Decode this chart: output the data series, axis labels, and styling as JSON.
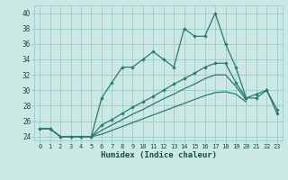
{
  "xlabel": "Humidex (Indice chaleur)",
  "bg_color": "#cce8e4",
  "grid_color": "#99cccc",
  "line_color": "#2d7a6e",
  "xlim": [
    -0.5,
    23.5
  ],
  "ylim": [
    23.5,
    41.0
  ],
  "yticks": [
    24,
    26,
    28,
    30,
    32,
    34,
    36,
    38,
    40
  ],
  "xticks": [
    0,
    1,
    2,
    3,
    4,
    5,
    6,
    7,
    8,
    9,
    10,
    11,
    12,
    13,
    14,
    15,
    16,
    17,
    18,
    19,
    20,
    21,
    22,
    23
  ],
  "x_main": [
    0,
    1,
    2,
    3,
    4,
    5,
    6,
    7,
    8,
    9,
    10,
    11,
    12,
    13,
    14,
    15,
    16,
    17,
    18,
    19,
    20,
    21,
    22,
    23
  ],
  "y_main": [
    25,
    25,
    24,
    24,
    24,
    24,
    29,
    31,
    33,
    33,
    34,
    35,
    34,
    33,
    38,
    37,
    37,
    40,
    36,
    33,
    29,
    29,
    30,
    27
  ],
  "x_line2": [
    0,
    1,
    2,
    3,
    4,
    5,
    6,
    7,
    8,
    9,
    10,
    11,
    12,
    13,
    14,
    15,
    16,
    17,
    18,
    19,
    20,
    21,
    22,
    23
  ],
  "y_line2": [
    25,
    25,
    24,
    24,
    24,
    24,
    25.5,
    26.2,
    27.0,
    27.8,
    28.5,
    29.2,
    30.0,
    30.8,
    31.5,
    32.2,
    33.0,
    33.5,
    33.5,
    31.0,
    29.0,
    29.5,
    30.0,
    27.5
  ],
  "x_line3": [
    0,
    1,
    2,
    3,
    4,
    5,
    6,
    7,
    8,
    9,
    10,
    11,
    12,
    13,
    14,
    15,
    16,
    17,
    18,
    19,
    20,
    21,
    22,
    23
  ],
  "y_line3": [
    25,
    25,
    24,
    24,
    24,
    24,
    24.8,
    25.5,
    26.2,
    26.9,
    27.5,
    28.2,
    28.9,
    29.5,
    30.2,
    30.8,
    31.5,
    32.0,
    32.0,
    30.5,
    28.8,
    null,
    null,
    null
  ],
  "x_line4": [
    0,
    1,
    2,
    3,
    4,
    5,
    6,
    7,
    8,
    9,
    10,
    11,
    12,
    13,
    14,
    15,
    16,
    17,
    18,
    19,
    20,
    21,
    22,
    23
  ],
  "y_line4": [
    25,
    25,
    24,
    24,
    24,
    24,
    24.3,
    24.8,
    25.3,
    25.8,
    26.3,
    26.8,
    27.3,
    27.8,
    28.3,
    28.8,
    29.3,
    29.7,
    29.8,
    29.5,
    28.5,
    null,
    null,
    null
  ]
}
